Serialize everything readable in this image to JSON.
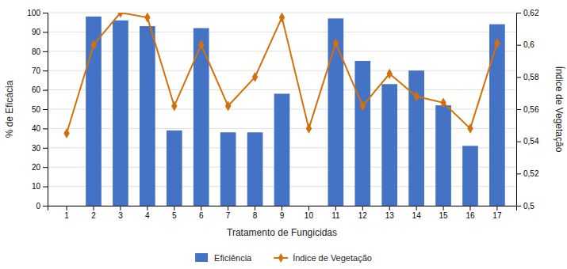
{
  "chart_data": {
    "type": "bar",
    "xlabel": "Tratamento de Fungicidas",
    "ylabel": "% de Eficácia",
    "y2label": "Índice de Vegetação",
    "categories": [
      1,
      2,
      3,
      4,
      5,
      6,
      7,
      8,
      9,
      10,
      11,
      12,
      13,
      14,
      15,
      16,
      17
    ],
    "series": [
      {
        "name": "Eficiência",
        "type": "bar",
        "color": "#4472C4",
        "values": [
          0,
          98,
          96,
          93,
          39,
          92,
          38,
          38,
          58,
          0,
          97,
          75,
          63,
          70,
          52,
          31,
          94
        ]
      },
      {
        "name": "Índice de Vegetação",
        "type": "line",
        "axis": "y2",
        "color": "#D4700A",
        "marker": "diamond",
        "values": [
          0.545,
          0.6,
          0.62,
          0.617,
          0.562,
          0.6,
          0.562,
          0.58,
          0.617,
          0.548,
          0.601,
          0.562,
          0.582,
          0.568,
          0.564,
          0.548,
          0.601
        ]
      }
    ],
    "ylim": [
      0,
      100
    ],
    "yticks": [
      0,
      10,
      20,
      30,
      40,
      50,
      60,
      70,
      80,
      90,
      100
    ],
    "y2lim": [
      0.5,
      0.62
    ],
    "y2ticks": [
      {
        "value": 0.5,
        "label": "0,5"
      },
      {
        "value": 0.52,
        "label": "0,52"
      },
      {
        "value": 0.54,
        "label": "0,54"
      },
      {
        "value": 0.56,
        "label": "0,56"
      },
      {
        "value": 0.58,
        "label": "0,58"
      },
      {
        "value": 0.6,
        "label": "0,6"
      },
      {
        "value": 0.62,
        "label": "0,62"
      }
    ],
    "grid": true,
    "legend": "bottom"
  }
}
